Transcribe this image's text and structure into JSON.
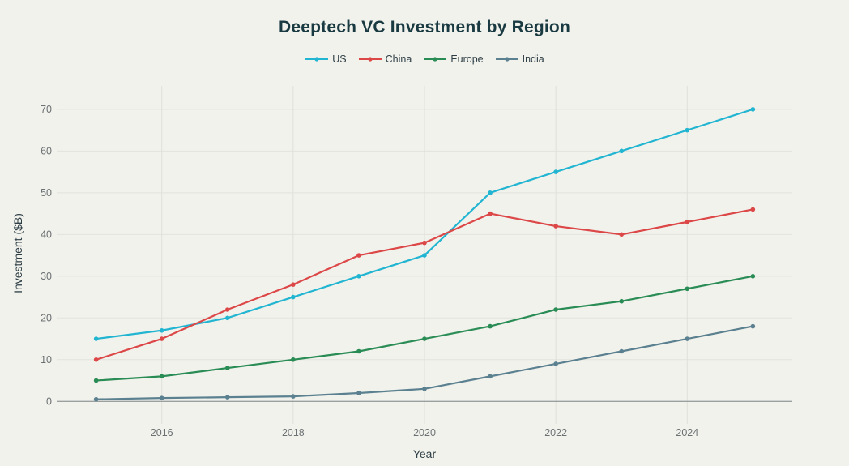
{
  "chart_data": {
    "type": "line",
    "title": "Deeptech VC Investment by Region",
    "xlabel": "Year",
    "ylabel": "Investment ($B)",
    "x": [
      2015,
      2016,
      2017,
      2018,
      2019,
      2020,
      2021,
      2022,
      2023,
      2024,
      2025
    ],
    "xlim": [
      2014.4,
      2025.6
    ],
    "ylim": [
      -1.5,
      72.5
    ],
    "xticks": [
      2016,
      2018,
      2020,
      2022,
      2024
    ],
    "xtick_labels": [
      "2016",
      "2018",
      "2020",
      "2022",
      "2024"
    ],
    "yticks": [
      0,
      10,
      20,
      30,
      40,
      50,
      60,
      70
    ],
    "ytick_labels": [
      "0",
      "10",
      "20",
      "30",
      "40",
      "50",
      "60",
      "70"
    ],
    "grid": true,
    "legend_position": "top-center",
    "series": [
      {
        "name": "US",
        "color": "#22b5d1",
        "values": [
          15,
          17,
          20,
          25,
          30,
          35,
          50,
          55,
          60,
          65,
          70
        ]
      },
      {
        "name": "China",
        "color": "#dc4848",
        "values": [
          10,
          15,
          22,
          28,
          35,
          38,
          45,
          42,
          40,
          43,
          46
        ]
      },
      {
        "name": "Europe",
        "color": "#2a8c55",
        "values": [
          5,
          6,
          8,
          10,
          12,
          15,
          18,
          22,
          24,
          27,
          30
        ]
      },
      {
        "name": "India",
        "color": "#5b8190",
        "values": [
          0.5,
          0.8,
          1,
          1.2,
          2,
          3,
          6,
          9,
          12,
          15,
          18
        ]
      }
    ]
  }
}
